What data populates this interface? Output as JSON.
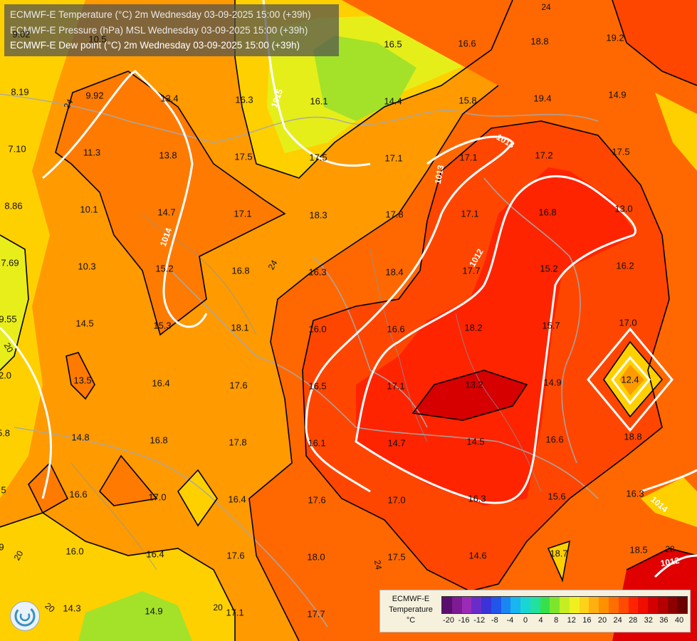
{
  "header": {
    "lines": [
      "ECMWF-E Temperature (°C) 2m Wednesday 03-09-2025 15:00 (+39h)",
      "ECMWF-E Pressure (hPa) MSL Wednesday 03-09-2025 15:00 (+39h)",
      "ECMWF-E Dew point (°C) 2m Wednesday 03-09-2025 15:00 (+39h)"
    ]
  },
  "legend": {
    "title_line1": "ECMWF-E",
    "title_line2": "Temperature",
    "unit": "°C",
    "ticks": [
      "-20",
      "-16",
      "-12",
      "-8",
      "-4",
      "0",
      "4",
      "8",
      "12",
      "16",
      "20",
      "24",
      "28",
      "32",
      "36",
      "40"
    ],
    "colors": [
      "#5a0f6e",
      "#7e1a93",
      "#9b2bb6",
      "#6a2cc8",
      "#3b32d8",
      "#2255ea",
      "#1a86f2",
      "#18b5f0",
      "#19d6d4",
      "#22e0a0",
      "#36e04a",
      "#7de62c",
      "#c4ee22",
      "#f0f01e",
      "#ffd21a",
      "#ffb010",
      "#ff9000",
      "#ff6e00",
      "#ff4a00",
      "#ff2400",
      "#f00e00",
      "#d40000",
      "#b40000",
      "#8e0000",
      "#6a0000"
    ]
  },
  "pressure_isobars": [
    "1012",
    "1012",
    "1013",
    "1013",
    "1014",
    "1014",
    "1015"
  ],
  "temp_contour_labels": [
    "24",
    "24",
    "24",
    "24",
    "28",
    "20",
    "20",
    "20",
    "20"
  ],
  "dewpoint_labels": [
    "9.02",
    "10.5",
    "16.5",
    "16.6",
    "18.8",
    "19.2",
    "8.19",
    "9.92",
    "13.4",
    "16.3",
    "16.1",
    "14.4",
    "15.8",
    "19.4",
    "14.9",
    "7.10",
    "11.3",
    "13.8",
    "17.5",
    "17.5",
    "17.1",
    "17.1",
    "17.2",
    "17.5",
    "8.86",
    "10.1",
    "14.7",
    "17.1",
    "18.3",
    "17.8",
    "17.1",
    "16.8",
    "13.0",
    "7.69",
    "10.3",
    "15.2",
    "16.8",
    "16.3",
    "18.4",
    "17.7",
    "15.2",
    "16.2",
    "9.55",
    "14.5",
    "15.3",
    "18.1",
    "16.0",
    "16.6",
    "18.2",
    "15.7",
    "17.0",
    "2.0",
    "13.5",
    "16.4",
    "17.6",
    "16.5",
    "17.1",
    "13.2",
    "14.9",
    "12.4",
    "5.8",
    "14.8",
    "16.8",
    "17.8",
    "16.1",
    "14.7",
    "14.5",
    "16.6",
    "18.8",
    "5",
    "16.6",
    "17.0",
    "16.4",
    "17.6",
    "17.0",
    "16.3",
    "15.6",
    "16.3",
    "9",
    "16.0",
    "16.4",
    "17.6",
    "18.0",
    "17.5",
    "14.6",
    "18.7",
    "18.5",
    "14.3",
    "14.9",
    "17.1",
    "17.7"
  ]
}
